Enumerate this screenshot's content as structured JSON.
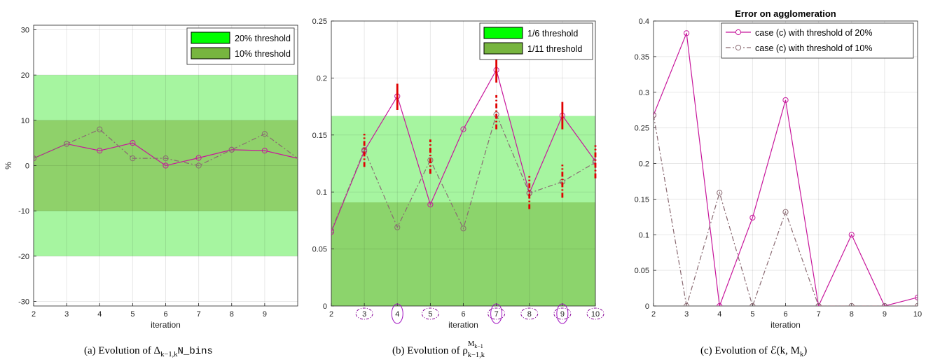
{
  "colors": {
    "band_outer": "#a6f5a0",
    "band_inner": "#8fd16a",
    "band_inner_b": "#8cd46c",
    "legend_bright": "#00ff00",
    "legend_dark": "#77b53f",
    "solid": "#c8179c",
    "dashed": "#8a6a72",
    "bar": "#e00000",
    "oval_solid": "#a010c0",
    "oval_dash": "#8a0a9a",
    "grid": "#e6e6e6",
    "axis": "#262626"
  },
  "captions": {
    "a": {
      "prefix": "(a)  Evolution of Δ",
      "sub": "k−1,k",
      "mono": "N_bins"
    },
    "b": {
      "prefix": "(b)  Evolution of ρ",
      "sup": "M",
      "supsub": "k−1",
      "sub": "k−1,k"
    },
    "c": {
      "prefix": "(c)  Evolution of ",
      "script": "ℰ",
      "args": "(k, M",
      "argsub": "k",
      "close": ")"
    }
  },
  "chart_data": [
    {
      "id": "a",
      "type": "line",
      "title": "",
      "xlabel": "iteration",
      "ylabel": "%",
      "xlim": [
        2,
        10
      ],
      "ylim": [
        -31,
        31
      ],
      "xticks": [
        2,
        3,
        4,
        5,
        6,
        7,
        8,
        9
      ],
      "yticks": [
        -30,
        -20,
        -10,
        0,
        10,
        20,
        30
      ],
      "grid": true,
      "bands": [
        {
          "name": "20% threshold",
          "lower": -20,
          "upper": 20,
          "color": "#a6f5a0"
        },
        {
          "name": "10% threshold",
          "lower": -10,
          "upper": 10,
          "color": "#8fd16a"
        }
      ],
      "legend": {
        "placement": "top-right",
        "entries": [
          "20% threshold",
          "10% threshold"
        ]
      },
      "series": [
        {
          "style": "solid",
          "x": [
            2,
            3,
            4,
            5,
            6,
            7,
            8,
            9,
            10
          ],
          "y": [
            1.6,
            4.8,
            3.3,
            5.0,
            0.0,
            1.7,
            3.5,
            3.3,
            1.6
          ],
          "markers": [
            2,
            3,
            4,
            5,
            6,
            7,
            8,
            9
          ]
        },
        {
          "style": "dashdot",
          "x": [
            2,
            3,
            4,
            5,
            6,
            7,
            8,
            9,
            10
          ],
          "y": [
            1.6,
            4.8,
            8.0,
            1.6,
            1.6,
            0.0,
            3.5,
            7.0,
            1.6
          ],
          "markers": [
            2,
            3,
            4,
            5,
            6,
            7,
            8,
            9
          ]
        }
      ]
    },
    {
      "id": "b",
      "type": "line",
      "title": "",
      "xlabel": "iteration",
      "ylabel": "",
      "xlim": [
        2,
        10
      ],
      "ylim": [
        0,
        0.25
      ],
      "xticks": [
        2,
        3,
        4,
        5,
        6,
        7,
        8,
        9,
        10
      ],
      "yticks": [
        0,
        0.05,
        0.1,
        0.15,
        0.2,
        0.25
      ],
      "grid": true,
      "bands": [
        {
          "name": "1/6 threshold",
          "lower": 0,
          "upper": 0.1667,
          "color": "#a6f5a0"
        },
        {
          "name": "1/11 threshold",
          "lower": 0,
          "upper": 0.0909,
          "color": "#8cd46c"
        }
      ],
      "legend": {
        "placement": "top-right",
        "entries": [
          "1/6 threshold",
          "1/11 threshold"
        ]
      },
      "series": [
        {
          "style": "solid",
          "x": [
            2,
            3,
            4,
            5,
            6,
            7,
            8,
            9,
            10
          ],
          "y": [
            0.065,
            0.136,
            0.184,
            0.089,
            0.155,
            0.207,
            0.099,
            0.167,
            0.127
          ]
        },
        {
          "style": "dashdot",
          "x": [
            2,
            3,
            4,
            5,
            6,
            7,
            8,
            9,
            10
          ],
          "y": [
            0.066,
            0.137,
            0.069,
            0.128,
            0.068,
            0.168,
            0.099,
            0.109,
            0.126
          ]
        }
      ],
      "bars_solid": [
        {
          "x": 4,
          "lo": 0.172,
          "hi": 0.195
        },
        {
          "x": 7,
          "lo": 0.196,
          "hi": 0.218
        },
        {
          "x": 9,
          "lo": 0.155,
          "hi": 0.179
        }
      ],
      "bars_dashed": [
        {
          "x": 3,
          "lo": 0.122,
          "hi": 0.151
        },
        {
          "x": 5,
          "lo": 0.116,
          "hi": 0.146
        },
        {
          "x": 7,
          "lo": 0.155,
          "hi": 0.185
        },
        {
          "x": 8,
          "lo": 0.085,
          "hi": 0.114
        },
        {
          "x": 9,
          "lo": 0.095,
          "hi": 0.124
        },
        {
          "x": 10,
          "lo": 0.112,
          "hi": 0.141
        }
      ],
      "circled_solid": [
        4,
        7,
        9
      ],
      "circled_dashed": [
        3,
        5,
        7,
        8,
        9,
        10
      ]
    },
    {
      "id": "c",
      "type": "line",
      "title": "Error on agglomeration",
      "xlabel": "iteration",
      "ylabel": "",
      "xlim": [
        2,
        10
      ],
      "ylim": [
        0,
        0.4
      ],
      "xticks": [
        2,
        3,
        4,
        5,
        6,
        7,
        8,
        9,
        10
      ],
      "yticks": [
        0,
        0.05,
        0.1,
        0.15,
        0.2,
        0.25,
        0.3,
        0.35,
        0.4
      ],
      "grid": true,
      "legend": {
        "placement": "top-right",
        "entries": [
          "case (c) with threshold of 20%",
          "case (c) with threshold of 10%"
        ]
      },
      "series": [
        {
          "name": "case (c) with threshold of 20%",
          "style": "solid",
          "x": [
            2,
            3,
            4,
            5,
            6,
            7,
            8,
            9,
            10
          ],
          "y": [
            0.268,
            0.383,
            0.0,
            0.124,
            0.289,
            0.0,
            0.1,
            0.0,
            0.012
          ]
        },
        {
          "name": "case (c) with threshold of 10%",
          "style": "dashdot",
          "x": [
            2,
            3,
            4,
            5,
            6,
            7,
            8,
            9,
            10
          ],
          "y": [
            0.268,
            0.0,
            0.159,
            0.0,
            0.132,
            0.0,
            0.0,
            0.0,
            0.0
          ]
        }
      ]
    }
  ]
}
